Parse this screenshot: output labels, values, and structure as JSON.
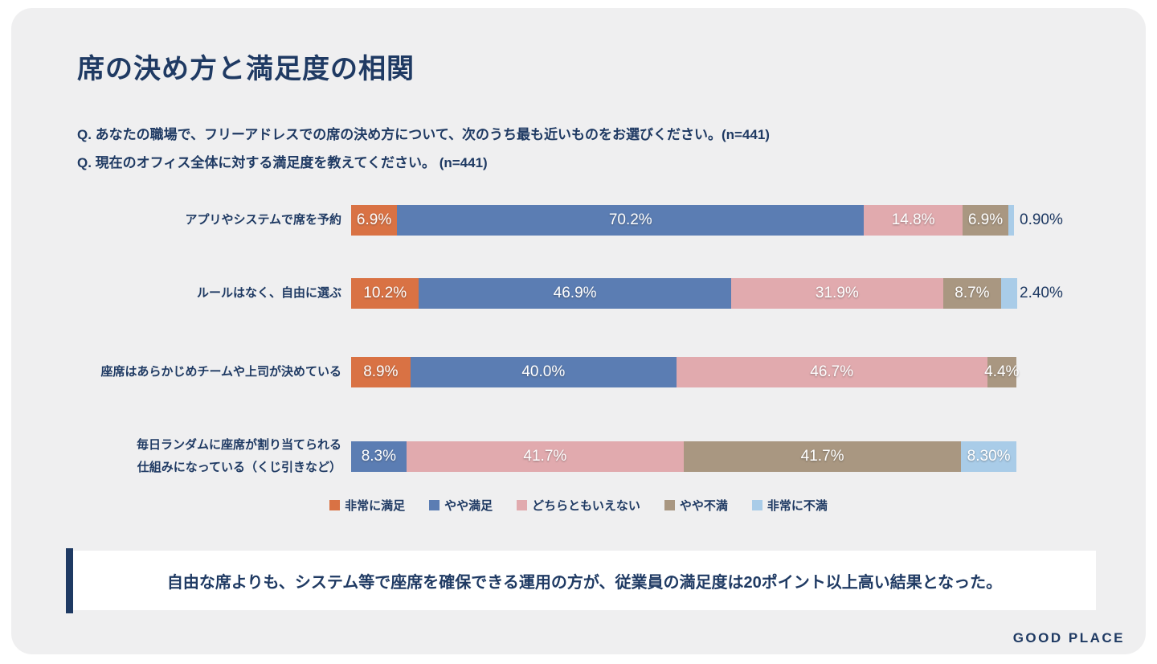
{
  "page": {
    "title": "席の決め方と満足度の相関",
    "questions": [
      "Q. あなたの職場で、フリーアドレスでの席の決め方について、次のうち最も近いものをお選びください。(n=441)",
      "Q. 現在のオフィス全体に対する満足度を教えてください。 (n=441)"
    ],
    "callout": "自由な席よりも、システム等で座席を確保できる運用の方が、従業員の満足度は20ポイント以上高い結果となった。",
    "logo": "GOOD PLACE"
  },
  "colors": {
    "card_background": "#efeff0",
    "page_background": "#ffffff",
    "navy_text": "#1f3a63",
    "callout_background": "#ffffff"
  },
  "chart_data": {
    "type": "bar",
    "orientation": "horizontal",
    "stacked": true,
    "unit": "%",
    "xlim": [
      0,
      100
    ],
    "legend_position": "bottom",
    "categories": [
      "アプリやシステムで席を予約",
      "ルールはなく、自由に選ぶ",
      "座席はあらかじめチームや上司が決めている",
      "毎日ランダムに座席が割り当てられる\n仕組みになっている（くじ引きなど）"
    ],
    "series": [
      {
        "name": "非常に満足",
        "color": "#d97244",
        "values": [
          6.9,
          10.2,
          8.9,
          0
        ]
      },
      {
        "name": "やや満足",
        "color": "#5b7db3",
        "values": [
          70.2,
          46.9,
          40.0,
          8.3
        ]
      },
      {
        "name": "どちらともいえない",
        "color": "#e1aaae",
        "values": [
          14.8,
          31.9,
          46.7,
          41.7
        ]
      },
      {
        "name": "やや不満",
        "color": "#a99781",
        "values": [
          6.9,
          8.7,
          4.4,
          41.7
        ]
      },
      {
        "name": "非常に不満",
        "color": "#a9cce8",
        "values": [
          0.9,
          2.4,
          0,
          8.3
        ]
      }
    ],
    "rows": [
      {
        "category": "アプリやシステムで席を予約",
        "segments": [
          {
            "series": 0,
            "value": 6.9,
            "label": "6.9%",
            "outside": false
          },
          {
            "series": 1,
            "value": 70.2,
            "label": "70.2%",
            "outside": false
          },
          {
            "series": 2,
            "value": 14.8,
            "label": "14.8%",
            "outside": false
          },
          {
            "series": 3,
            "value": 6.9,
            "label": "6.9%",
            "outside": false
          },
          {
            "series": 4,
            "value": 0.9,
            "label": "0.90%",
            "outside": true
          }
        ]
      },
      {
        "category": "ルールはなく、自由に選ぶ",
        "segments": [
          {
            "series": 0,
            "value": 10.2,
            "label": "10.2%",
            "outside": false
          },
          {
            "series": 1,
            "value": 46.9,
            "label": "46.9%",
            "outside": false
          },
          {
            "series": 2,
            "value": 31.9,
            "label": "31.9%",
            "outside": false
          },
          {
            "series": 3,
            "value": 8.7,
            "label": "8.7%",
            "outside": false
          },
          {
            "series": 4,
            "value": 2.4,
            "label": "2.40%",
            "outside": true
          }
        ]
      },
      {
        "category": "座席はあらかじめチームや上司が決めている",
        "segments": [
          {
            "series": 0,
            "value": 8.9,
            "label": "8.9%",
            "outside": false
          },
          {
            "series": 1,
            "value": 40.0,
            "label": "40.0%",
            "outside": false
          },
          {
            "series": 2,
            "value": 46.7,
            "label": "46.7%",
            "outside": false
          },
          {
            "series": 3,
            "value": 4.4,
            "label": "4.4%",
            "outside": false
          }
        ]
      },
      {
        "category": "毎日ランダムに座席が割り当てられる\n仕組みになっている（くじ引きなど）",
        "segments": [
          {
            "series": 1,
            "value": 8.3,
            "label": "8.3%",
            "outside": false
          },
          {
            "series": 2,
            "value": 41.7,
            "label": "41.7%",
            "outside": false
          },
          {
            "series": 3,
            "value": 41.7,
            "label": "41.7%",
            "outside": false
          },
          {
            "series": 4,
            "value": 8.3,
            "label": "8.30%",
            "outside": false
          }
        ]
      }
    ]
  }
}
